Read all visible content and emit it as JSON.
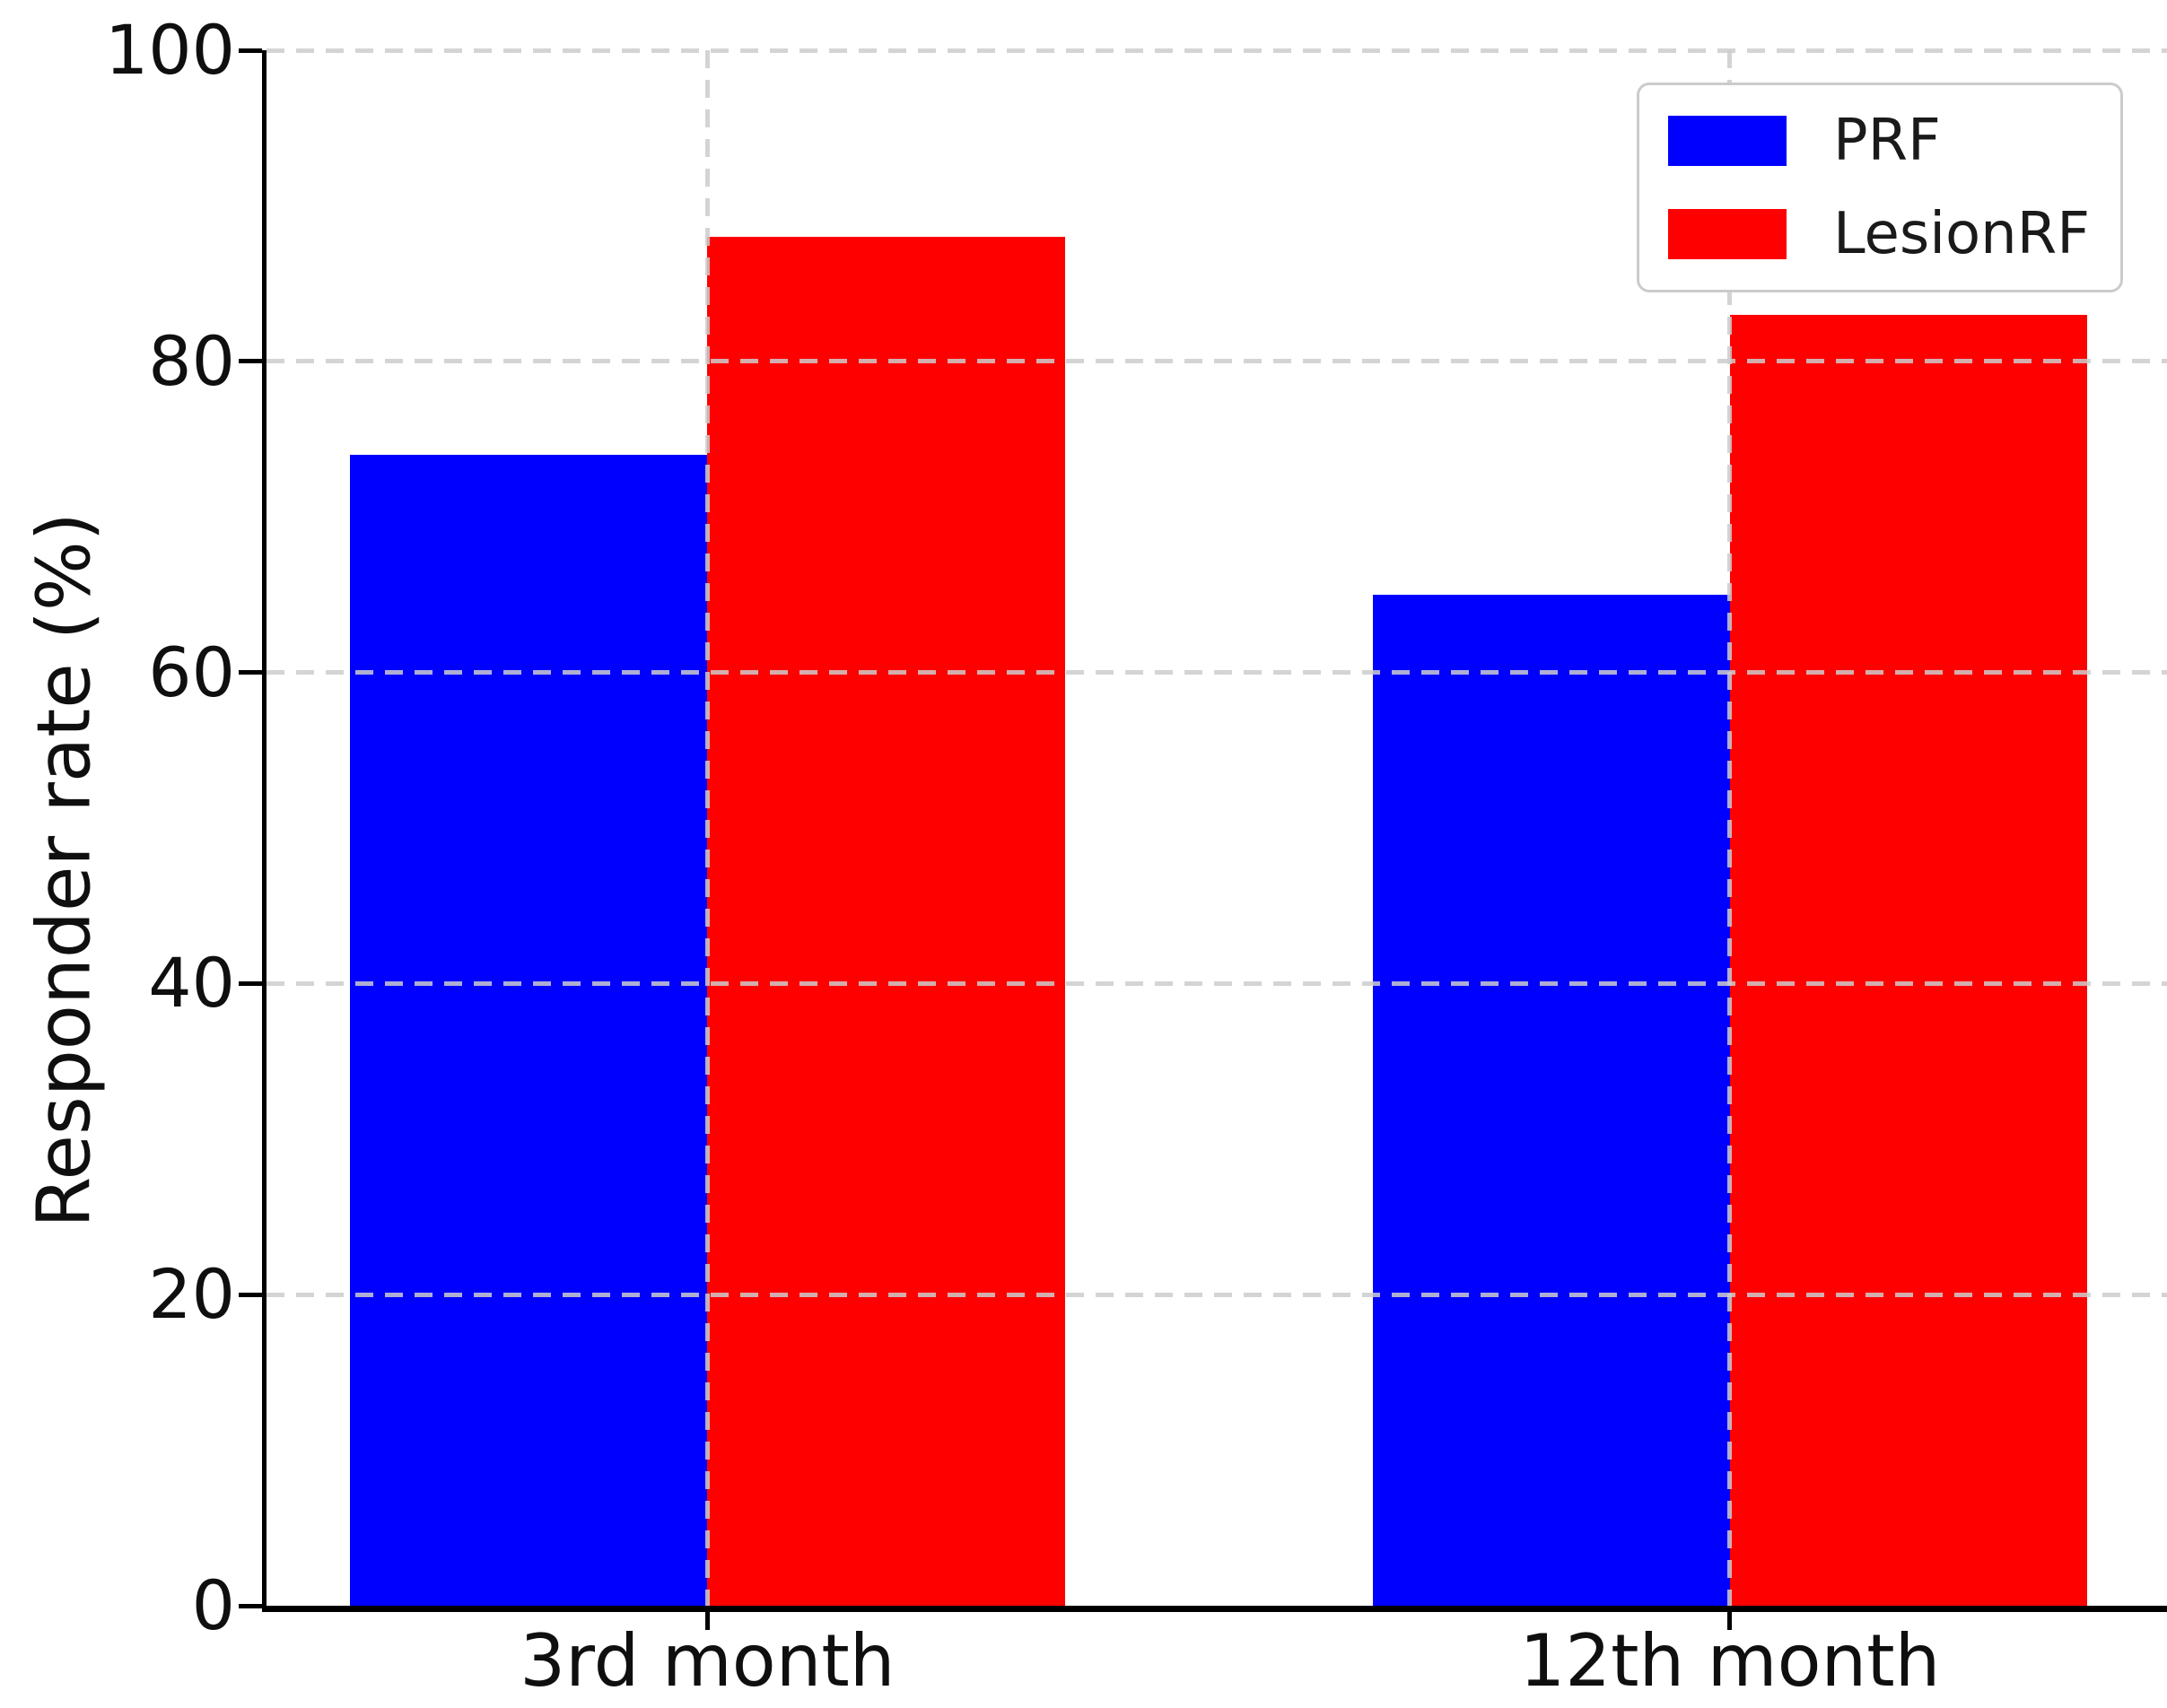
{
  "chart_data": {
    "type": "bar",
    "categories": [
      "3rd month",
      "12th month"
    ],
    "series": [
      {
        "name": "PRF",
        "color": "#0000ff",
        "values": [
          74,
          65
        ]
      },
      {
        "name": "LesionRF",
        "color": "#ff0000",
        "values": [
          88,
          83
        ]
      }
    ],
    "title": "",
    "xlabel": "",
    "ylabel": "Responder rate (%)",
    "ylim": [
      0,
      100
    ],
    "yticks": [
      0,
      20,
      40,
      60,
      80,
      100
    ],
    "grid": true,
    "grid_style": "dashed",
    "grid_color": "#cdcdcd",
    "axis_color": "#000000",
    "legend_position": "upper right",
    "legend_labels": [
      "PRF",
      "LesionRF"
    ]
  }
}
